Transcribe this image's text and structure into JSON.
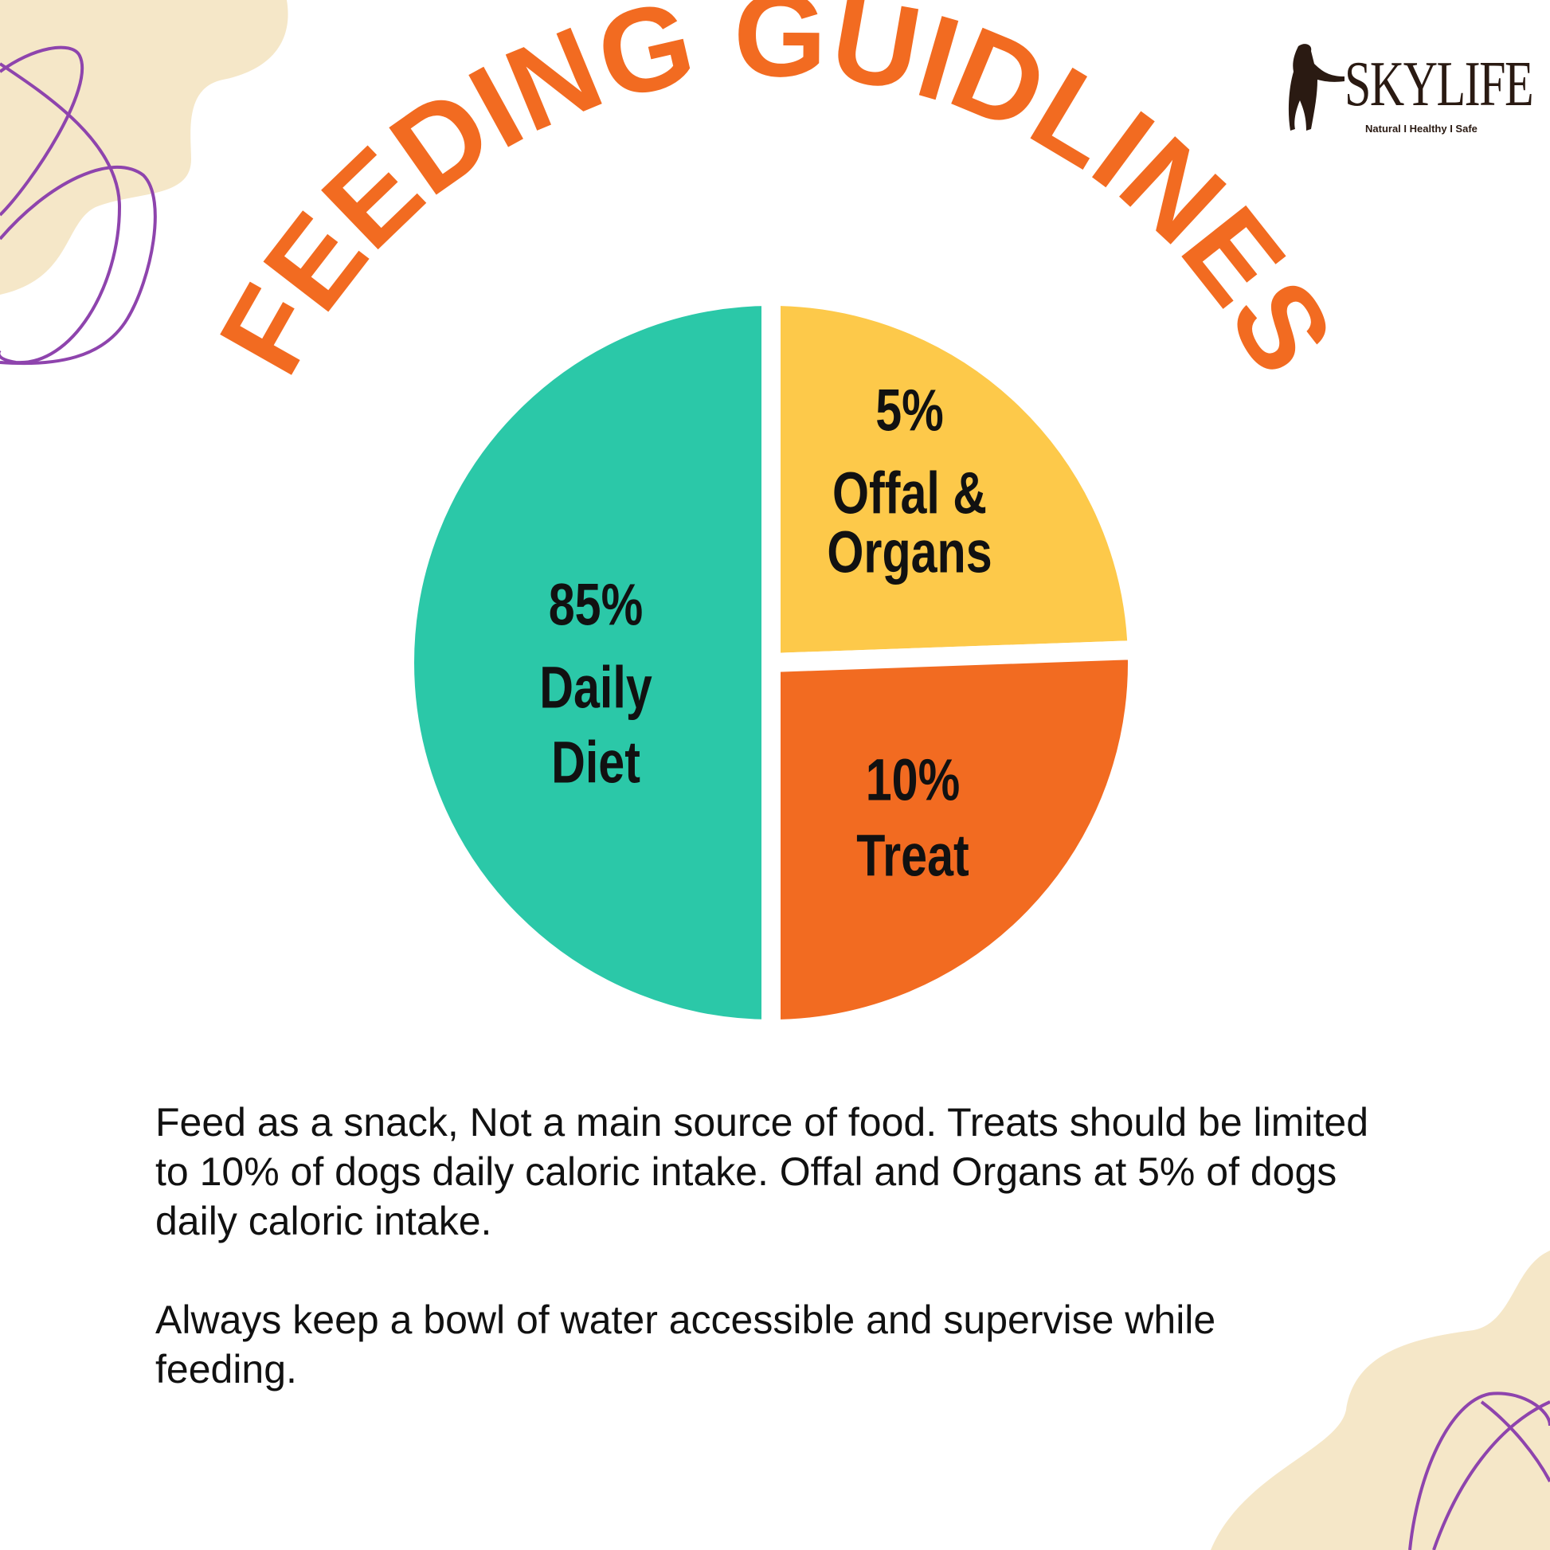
{
  "brand": {
    "name": "SKYLIFE",
    "tagline": "Natural I Healthy I Safe"
  },
  "title": "FEEDING GUIDLINES",
  "colors": {
    "teal": "#2BC8A8",
    "yellow": "#FDC94A",
    "orange": "#F26B21",
    "beige": "#F5E7C8",
    "purple": "#8E44AD"
  },
  "chart_data": {
    "type": "pie",
    "title": "FEEDING GUIDLINES",
    "slices": [
      {
        "percent": "85%",
        "label_line1": "Daily",
        "label_line2": "Diet",
        "value": 85,
        "color": "#2BC8A8"
      },
      {
        "percent": "5%",
        "label_line1": "Offal &",
        "label_line2": "Organs",
        "value": 5,
        "color": "#FDC94A"
      },
      {
        "percent": "10%",
        "label_line1": "Treat",
        "label_line2": "",
        "value": 10,
        "color": "#F26B21"
      }
    ]
  },
  "notes": {
    "paragraph1": "Feed as a snack, Not a main source of food. Treats should be limited to 10% of dogs daily caloric intake. Offal and Organs at 5% of dogs daily caloric intake.",
    "paragraph2": "Always keep a bowl of water accessible and supervise while feeding."
  }
}
